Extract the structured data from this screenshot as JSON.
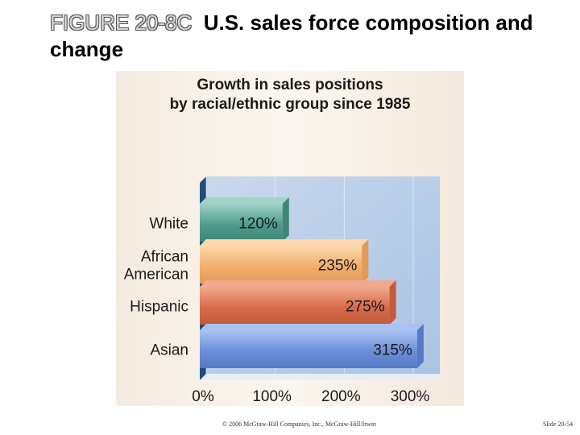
{
  "slide": {
    "figure_label": "FIGURE 20-8C",
    "title": "U.S. sales force composition and change",
    "footer_copyright": "© 2006 McGraw-Hill Companies, Inc., McGraw-Hill/Irwin",
    "footer_slide_number": "Slide 20-54"
  },
  "chart_data": {
    "type": "bar",
    "orientation": "horizontal",
    "title_lines": [
      "Growth in sales positions",
      "by racial/ethnic group since 1985"
    ],
    "category_lines": [
      [
        "White"
      ],
      [
        "African",
        "American"
      ],
      [
        "Hispanic"
      ],
      [
        "Asian"
      ]
    ],
    "categories": [
      "White",
      "African American",
      "Hispanic",
      "Asian"
    ],
    "values": [
      120,
      235,
      275,
      315
    ],
    "value_labels": [
      "120%",
      "235%",
      "275%",
      "315%"
    ],
    "x_ticks": [
      0,
      100,
      200,
      300
    ],
    "x_tick_labels": [
      "0%",
      "100%",
      "200%",
      "300%"
    ],
    "xlim": [
      0,
      300
    ],
    "xlabel": "",
    "ylabel": "",
    "grid": true,
    "bar_colors": [
      [
        "#4e9c8c",
        "#9fd4c6",
        "#3f8676"
      ],
      [
        "#f2ae6d",
        "#fbd8ad",
        "#e39b57"
      ],
      [
        "#d76b4a",
        "#f0a98c",
        "#c25a3b"
      ],
      [
        "#6a8fd8",
        "#a9c2ef",
        "#5679c6"
      ]
    ],
    "plot_background": [
      "#c9d8ec",
      "#a9c3e3"
    ]
  }
}
